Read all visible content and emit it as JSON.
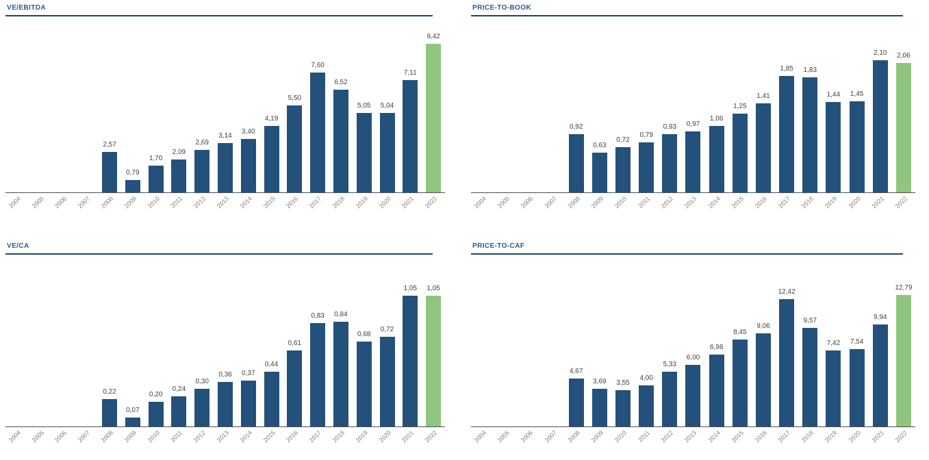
{
  "page": {
    "background": "#ffffff"
  },
  "colors": {
    "bar_blue": "#24517b",
    "bar_green_highlight": "#90c57f",
    "title_blue": "#2a5a8c",
    "title_rule_navy": "#1f4566",
    "value_label_gray": "#404040",
    "year_label_gray": "#7f7f7f",
    "axis_gray": "#4d4d4d"
  },
  "chart_data": [
    {
      "type": "bar",
      "title": "VE/EBITDA",
      "categories": [
        "2004",
        "2005",
        "2006",
        "2007",
        "2008",
        "2009",
        "2010",
        "2011",
        "2012",
        "2013",
        "2014",
        "2015",
        "2016",
        "2017",
        "2018",
        "2019",
        "2020",
        "2021",
        "2022"
      ],
      "values": [
        null,
        null,
        null,
        null,
        2.57,
        0.79,
        1.7,
        2.09,
        2.69,
        3.14,
        3.4,
        4.19,
        5.5,
        7.6,
        6.52,
        5.05,
        5.04,
        7.11,
        9.42
      ],
      "labels": [
        "",
        "",
        "",
        "",
        "2,57",
        "0,79",
        "1,70",
        "2,09",
        "2,69",
        "3,14",
        "3,40",
        "4,19",
        "5,50",
        "7,60",
        "6,52",
        "5,05",
        "5,04",
        "7,11",
        "9,42"
      ],
      "highlight_last": true,
      "xlabel": "",
      "ylabel": "",
      "ylim": [
        0,
        9.42
      ],
      "grid": false,
      "legend": "none"
    },
    {
      "type": "bar",
      "title": "PRICE-TO-BOOK",
      "categories": [
        "2004",
        "2005",
        "2006",
        "2007",
        "2008",
        "2009",
        "2010",
        "2011",
        "2012",
        "2013",
        "2014",
        "2015",
        "2016",
        "2017",
        "2018",
        "2019",
        "2020",
        "2021",
        "2022"
      ],
      "values": [
        null,
        null,
        null,
        null,
        0.92,
        0.63,
        0.72,
        0.79,
        0.93,
        0.97,
        1.06,
        1.25,
        1.41,
        1.85,
        1.83,
        1.44,
        1.45,
        2.1,
        2.06
      ],
      "labels": [
        "",
        "",
        "",
        "",
        "0,92",
        "0,63",
        "0,72",
        "0,79",
        "0,93",
        "0,97",
        "1,06",
        "1,25",
        "1,41",
        "1,85",
        "1,83",
        "1,44",
        "1,45",
        "2,10",
        "2,06"
      ],
      "highlight_last": true,
      "xlabel": "",
      "ylabel": "",
      "ylim": [
        0,
        2.1
      ],
      "grid": false,
      "legend": "none"
    },
    {
      "type": "bar",
      "title": "VE/CA",
      "categories": [
        "2004",
        "2005",
        "2006",
        "2007",
        "2008",
        "2009",
        "2010",
        "2011",
        "2012",
        "2013",
        "2014",
        "2015",
        "2016",
        "2017",
        "2018",
        "2019",
        "2020",
        "2021",
        "2022"
      ],
      "values": [
        null,
        null,
        null,
        null,
        0.22,
        0.07,
        0.2,
        0.24,
        0.3,
        0.36,
        0.37,
        0.44,
        0.61,
        0.83,
        0.84,
        0.68,
        0.72,
        1.05,
        1.05
      ],
      "labels": [
        "",
        "",
        "",
        "",
        "0,22",
        "0,07",
        "0,20",
        "0,24",
        "0,30",
        "0,36",
        "0,37",
        "0,44",
        "0,61",
        "0,83",
        "0,84",
        "0,68",
        "0,72",
        "1,05",
        "1,05"
      ],
      "highlight_last": true,
      "xlabel": "",
      "ylabel": "",
      "ylim": [
        0,
        1.05
      ],
      "grid": false,
      "legend": "none"
    },
    {
      "type": "bar",
      "title": "PRICE-TO-CAF",
      "categories": [
        "2004",
        "2005",
        "2006",
        "2007",
        "2008",
        "2009",
        "2010",
        "2011",
        "2012",
        "2013",
        "2014",
        "2015",
        "2016",
        "2017",
        "2018",
        "2019",
        "2020",
        "2021",
        "2022"
      ],
      "values": [
        null,
        null,
        null,
        null,
        4.67,
        3.69,
        3.55,
        4.0,
        5.33,
        6.0,
        6.98,
        8.45,
        9.06,
        12.42,
        9.57,
        7.42,
        7.54,
        9.94,
        12.79
      ],
      "labels": [
        "",
        "",
        "",
        "",
        "4,67",
        "3,69",
        "3,55",
        "4,00",
        "5,33",
        "6,00",
        "6,98",
        "8,45",
        "9,06",
        "12,42",
        "9,57",
        "7,42",
        "7,54",
        "9,94",
        "12,79"
      ],
      "highlight_last": true,
      "xlabel": "",
      "ylabel": "",
      "ylim": [
        0,
        12.79
      ],
      "grid": false,
      "legend": "none"
    }
  ]
}
